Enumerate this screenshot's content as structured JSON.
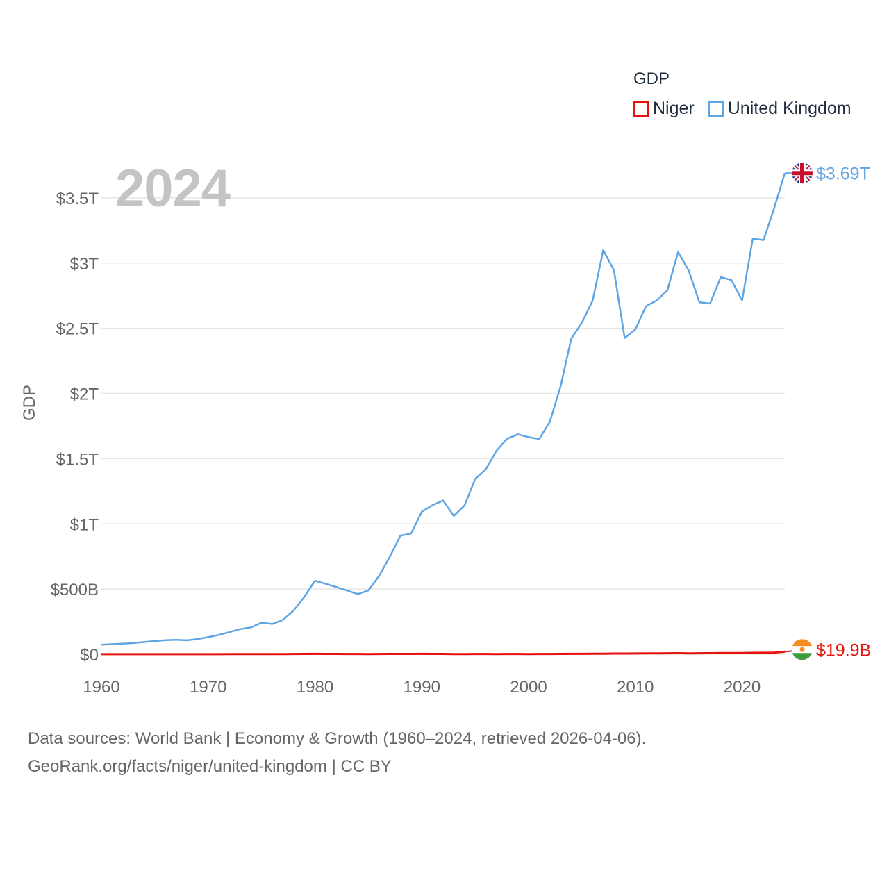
{
  "legend": {
    "title": "GDP",
    "items": [
      {
        "name": "Niger",
        "color": "#e8120c"
      },
      {
        "name": "United Kingdom",
        "color": "#5fa4e3"
      }
    ]
  },
  "year_label": "2024",
  "end_labels": [
    {
      "text": "$3.69T",
      "color": "#5fa4e3",
      "flag": "uk-flag-icon"
    },
    {
      "text": "$19.9B",
      "color": "#e8120c",
      "flag": "niger-flag-icon"
    }
  ],
  "source": {
    "line1": "Data sources: World Bank | Economy & Growth (1960–2024, retrieved 2026-04-06).",
    "line2": "GeoRank.org/facts/niger/united-kingdom | CC BY"
  },
  "chart_data": {
    "type": "line",
    "title": "",
    "xlabel": "",
    "ylabel": "GDP",
    "xlim": [
      1960,
      2024
    ],
    "ylim": [
      0,
      3.75
    ],
    "y_unit": "trillion USD",
    "x_ticks": [
      1960,
      1970,
      1980,
      1990,
      2000,
      2010,
      2020
    ],
    "y_ticks": [
      {
        "value": 0,
        "label": "$0"
      },
      {
        "value": 0.5,
        "label": "$500B"
      },
      {
        "value": 1,
        "label": "$1T"
      },
      {
        "value": 1.5,
        "label": "$1.5T"
      },
      {
        "value": 2,
        "label": "$2T"
      },
      {
        "value": 2.5,
        "label": "$2.5T"
      },
      {
        "value": 3,
        "label": "$3T"
      },
      {
        "value": 3.5,
        "label": "$3.5T"
      }
    ],
    "grid": true,
    "x": [
      1960,
      1961,
      1962,
      1963,
      1964,
      1965,
      1966,
      1967,
      1968,
      1969,
      1970,
      1971,
      1972,
      1973,
      1974,
      1975,
      1976,
      1977,
      1978,
      1979,
      1980,
      1981,
      1982,
      1983,
      1984,
      1985,
      1986,
      1987,
      1988,
      1989,
      1990,
      1991,
      1992,
      1993,
      1994,
      1995,
      1996,
      1997,
      1998,
      1999,
      2000,
      2001,
      2002,
      2003,
      2004,
      2005,
      2006,
      2007,
      2008,
      2009,
      2010,
      2011,
      2012,
      2013,
      2014,
      2015,
      2016,
      2017,
      2018,
      2019,
      2020,
      2021,
      2022,
      2023,
      2024
    ],
    "series": [
      {
        "name": "United Kingdom",
        "color": "#5fa4e3",
        "values": [
          0.073,
          0.077,
          0.081,
          0.086,
          0.094,
          0.101,
          0.108,
          0.111,
          0.107,
          0.116,
          0.131,
          0.148,
          0.17,
          0.193,
          0.206,
          0.242,
          0.232,
          0.263,
          0.336,
          0.439,
          0.564,
          0.54,
          0.515,
          0.489,
          0.462,
          0.489,
          0.601,
          0.746,
          0.91,
          0.926,
          1.093,
          1.143,
          1.179,
          1.061,
          1.141,
          1.344,
          1.419,
          1.561,
          1.653,
          1.687,
          1.665,
          1.65,
          1.785,
          2.054,
          2.421,
          2.544,
          2.713,
          3.1,
          2.944,
          2.425,
          2.491,
          2.67,
          2.713,
          2.791,
          3.085,
          2.943,
          2.7,
          2.69,
          2.893,
          2.87,
          2.714,
          3.188,
          3.177,
          3.42,
          3.69
        ]
      },
      {
        "name": "Niger",
        "color": "#e8120c",
        "values": [
          0.0005,
          0.0005,
          0.0006,
          0.0007,
          0.0006,
          0.0007,
          0.0007,
          0.0007,
          0.0007,
          0.0006,
          0.0006,
          0.0007,
          0.0008,
          0.001,
          0.0011,
          0.0012,
          0.0013,
          0.0016,
          0.0021,
          0.0026,
          0.0031,
          0.0029,
          0.0026,
          0.0022,
          0.0019,
          0.0018,
          0.0021,
          0.0025,
          0.0025,
          0.0024,
          0.003,
          0.0027,
          0.0025,
          0.0016,
          0.0017,
          0.0019,
          0.0019,
          0.0018,
          0.002,
          0.002,
          0.0018,
          0.0019,
          0.0021,
          0.0027,
          0.0031,
          0.0034,
          0.0037,
          0.0043,
          0.0054,
          0.0054,
          0.0057,
          0.0064,
          0.0069,
          0.0075,
          0.008,
          0.0069,
          0.0074,
          0.0078,
          0.0092,
          0.0093,
          0.0097,
          0.0107,
          0.0111,
          0.0124,
          0.0199
        ]
      }
    ]
  }
}
